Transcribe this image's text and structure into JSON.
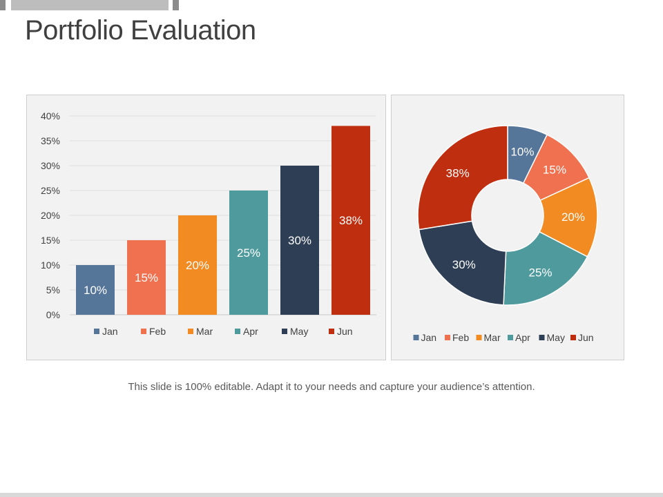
{
  "slide": {
    "title": "Portfolio Evaluation",
    "caption": "This slide is 100% editable. Adapt it to your needs and capture your audience’s attention."
  },
  "colors": {
    "Jan": "#557599",
    "Feb": "#f07150",
    "Mar": "#f28b22",
    "Apr": "#4e9a9c",
    "May": "#2e3e55",
    "Jun": "#bf2e0f"
  },
  "chart_data": [
    {
      "type": "bar",
      "categories": [
        "Jan",
        "Feb",
        "Mar",
        "Apr",
        "May",
        "Jun"
      ],
      "values": [
        10,
        15,
        20,
        25,
        30,
        38
      ],
      "data_labels": [
        "10%",
        "15%",
        "20%",
        "25%",
        "30%",
        "38%"
      ],
      "yticks": [
        "0%",
        "5%",
        "10%",
        "15%",
        "20%",
        "25%",
        "30%",
        "35%",
        "40%"
      ],
      "ylim": [
        0,
        40
      ],
      "grid": true,
      "legend": "bottom",
      "legend_labels": [
        "Jan",
        "Feb",
        "Mar",
        "Apr",
        "May",
        "Jun"
      ]
    },
    {
      "type": "pie",
      "donut": true,
      "categories": [
        "Jan",
        "Feb",
        "Mar",
        "Apr",
        "May",
        "Jun"
      ],
      "values": [
        10,
        15,
        20,
        25,
        30,
        38
      ],
      "data_labels": [
        "10%",
        "15%",
        "20%",
        "25%",
        "30%",
        "38%"
      ],
      "legend": "bottom",
      "legend_labels": [
        "Jan",
        "Feb",
        "Mar",
        "Apr",
        "May",
        "Jun"
      ]
    }
  ]
}
